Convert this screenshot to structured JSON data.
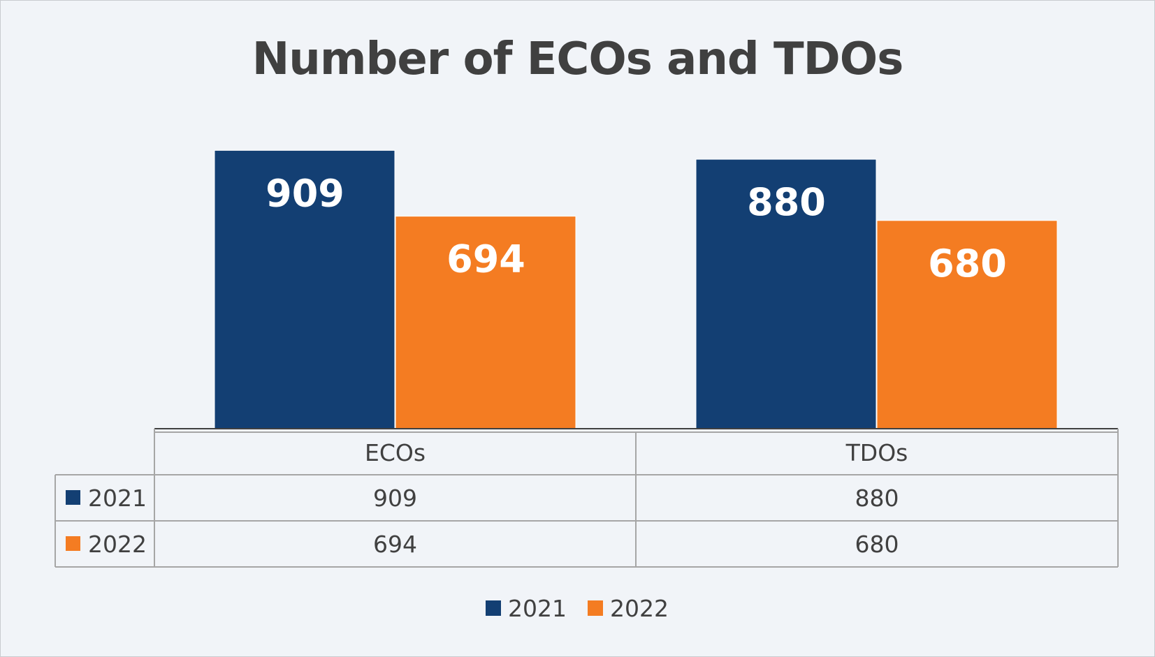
{
  "chart_data": {
    "type": "bar",
    "title": "Number of ECOs and TDOs",
    "categories": [
      "ECOs",
      "TDOs"
    ],
    "series": [
      {
        "name": "2021",
        "values": [
          909,
          880
        ],
        "color": "#133f73"
      },
      {
        "name": "2022",
        "values": [
          694,
          680
        ],
        "color": "#f47c22"
      }
    ],
    "ylim": [
      0,
      960
    ],
    "grid": false,
    "data_labels": true,
    "data_table": true,
    "legend_position": "bottom"
  }
}
